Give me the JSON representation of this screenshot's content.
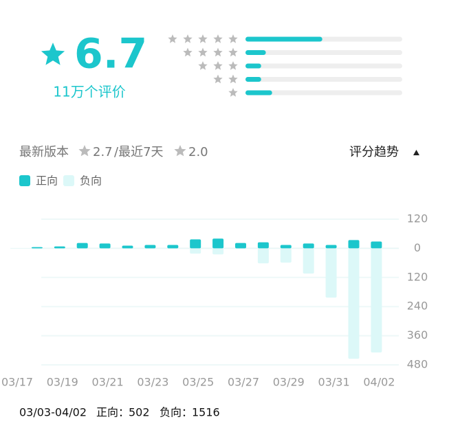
{
  "header": {
    "score": "6.7",
    "count": "11万个评价"
  },
  "rating_bars": {
    "values": [
      49,
      13,
      10,
      10,
      17
    ],
    "xlim": [
      0,
      100
    ]
  },
  "version_line": {
    "latest_label": "最新版本",
    "latest_score": "2.7",
    "recent_label": "/最近7天",
    "recent_score": "2.0"
  },
  "trend_toggle": "评分趋势",
  "chart_data": {
    "type": "bar",
    "categories": [
      "03/17",
      null,
      "03/19",
      null,
      "03/21",
      null,
      "03/23",
      null,
      "03/25",
      null,
      "03/27",
      null,
      "03/29",
      null,
      "03/31",
      null,
      "04/02"
    ],
    "series": [
      {
        "name": "正向",
        "color": "#1cc6cc",
        "values": [
          0,
          5,
          8,
          22,
          20,
          11,
          14,
          14,
          37,
          40,
          22,
          25,
          14,
          20,
          14,
          34,
          28
        ]
      },
      {
        "name": "负向",
        "color": "#dcf8f8",
        "values": [
          0,
          -3,
          -2,
          -2,
          -2,
          -2,
          -2,
          -2,
          -22,
          -25,
          -2,
          -62,
          -59,
          -104,
          -203,
          -455,
          -429
        ]
      }
    ],
    "ylim": [
      -480,
      120
    ],
    "yticks": [
      {
        "value": 120,
        "label": "120"
      },
      0,
      {
        "value": -120,
        "label": "120"
      },
      {
        "value": -240,
        "label": "240"
      },
      {
        "value": -360,
        "label": "360"
      },
      {
        "value": -480,
        "label": "480"
      }
    ],
    "grid": true
  },
  "footer": {
    "range": "03/03-04/02",
    "positive_label": "正向：",
    "positive": 502,
    "negative_label": "负向：",
    "negative": 1516
  }
}
